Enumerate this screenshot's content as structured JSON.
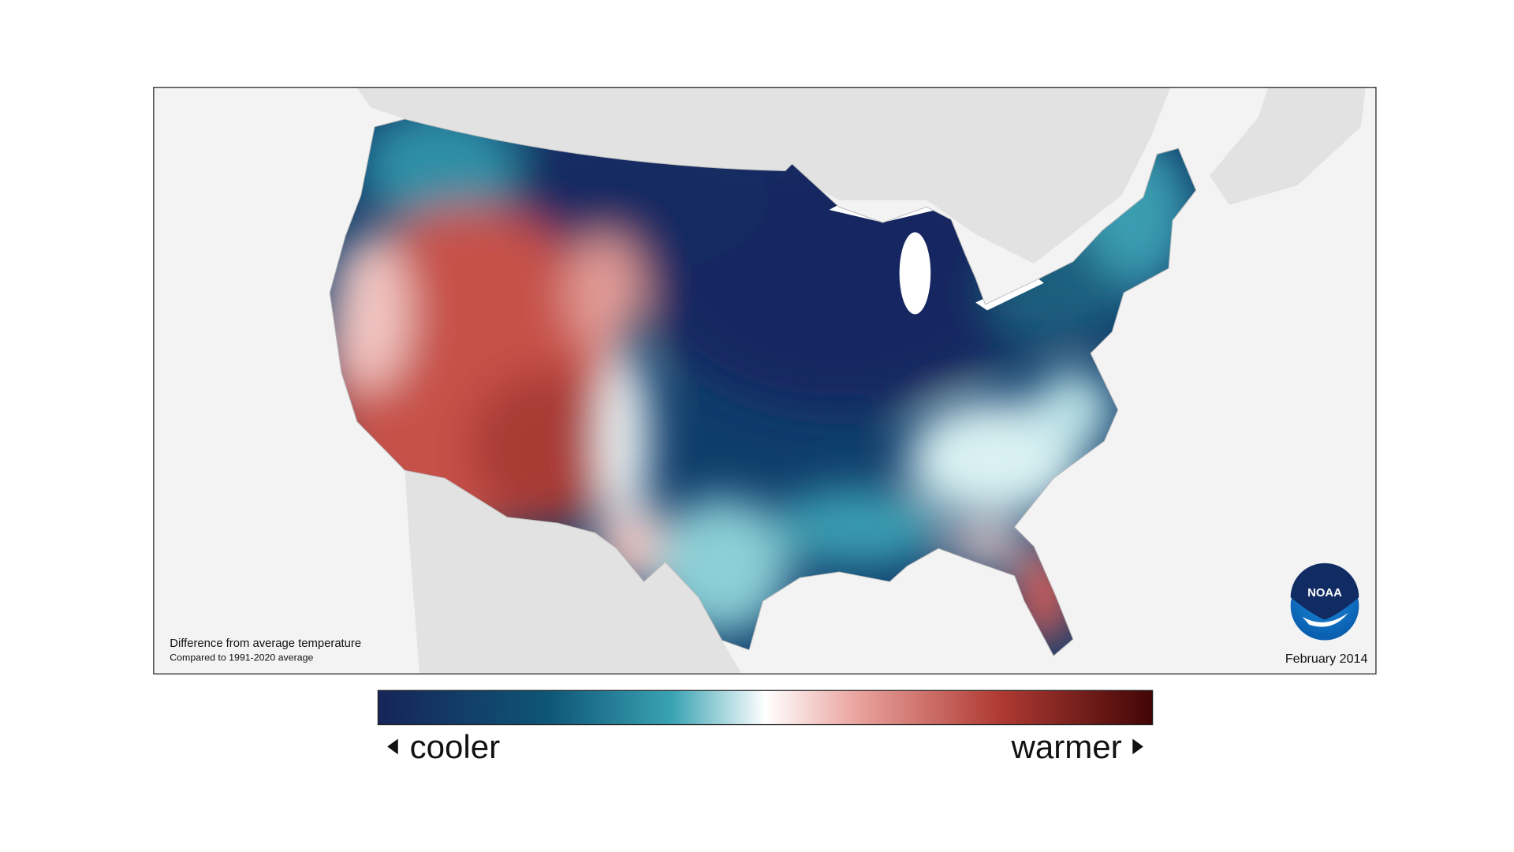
{
  "map": {
    "caption": {
      "title": "Difference from average temperature",
      "subtitle": "Compared to 1991-2020 average"
    },
    "date": "February 2014",
    "logo": {
      "text": "NOAA"
    }
  },
  "legend": {
    "low_label": "cooler",
    "high_label": "warmer"
  }
}
